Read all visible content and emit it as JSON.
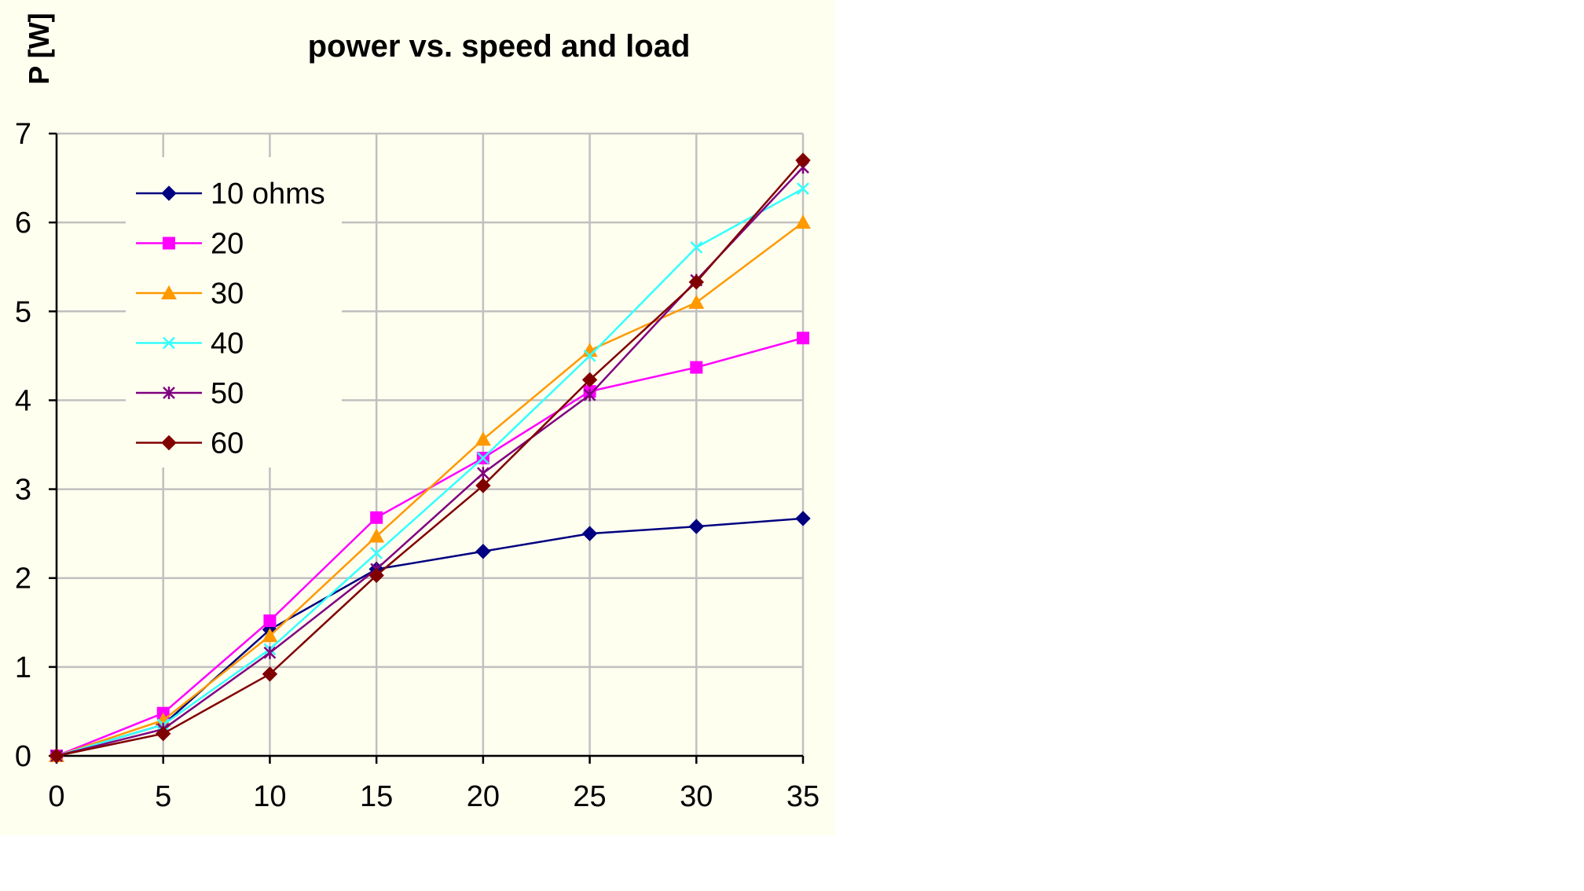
{
  "chart_data": {
    "type": "line",
    "title": "power vs. speed and load",
    "xlabel": "",
    "ylabel": "P [W]",
    "x": [
      0,
      5,
      10,
      15,
      20,
      25,
      30,
      35
    ],
    "xlim": [
      0,
      35
    ],
    "ylim": [
      0,
      7
    ],
    "xticks": [
      0,
      5,
      10,
      15,
      20,
      25,
      30,
      35
    ],
    "yticks": [
      0,
      1,
      2,
      3,
      4,
      5,
      6,
      7
    ],
    "grid": true,
    "legend_position": "top-left",
    "series": [
      {
        "name": "10 ohms",
        "color": "#000080",
        "marker": "diamond",
        "values": [
          0,
          0.35,
          1.42,
          2.1,
          2.3,
          2.5,
          2.58,
          2.67
        ]
      },
      {
        "name": "20",
        "color": "#ff00ff",
        "marker": "square",
        "values": [
          0,
          0.48,
          1.52,
          2.68,
          3.35,
          4.1,
          4.37,
          4.7
        ]
      },
      {
        "name": "30",
        "color": "#ff9900",
        "marker": "triangle",
        "values": [
          0,
          0.4,
          1.35,
          2.47,
          3.56,
          4.56,
          5.1,
          6.0
        ]
      },
      {
        "name": "40",
        "color": "#33ffff",
        "marker": "x",
        "values": [
          0,
          0.35,
          1.2,
          2.28,
          3.35,
          4.5,
          5.72,
          6.38
        ]
      },
      {
        "name": "50",
        "color": "#800080",
        "marker": "star",
        "values": [
          0,
          0.3,
          1.16,
          2.1,
          3.18,
          4.06,
          5.35,
          6.62
        ]
      },
      {
        "name": "60",
        "color": "#800000",
        "marker": "diamond",
        "values": [
          0,
          0.25,
          0.92,
          2.03,
          3.04,
          4.23,
          5.33,
          6.7
        ]
      }
    ]
  }
}
